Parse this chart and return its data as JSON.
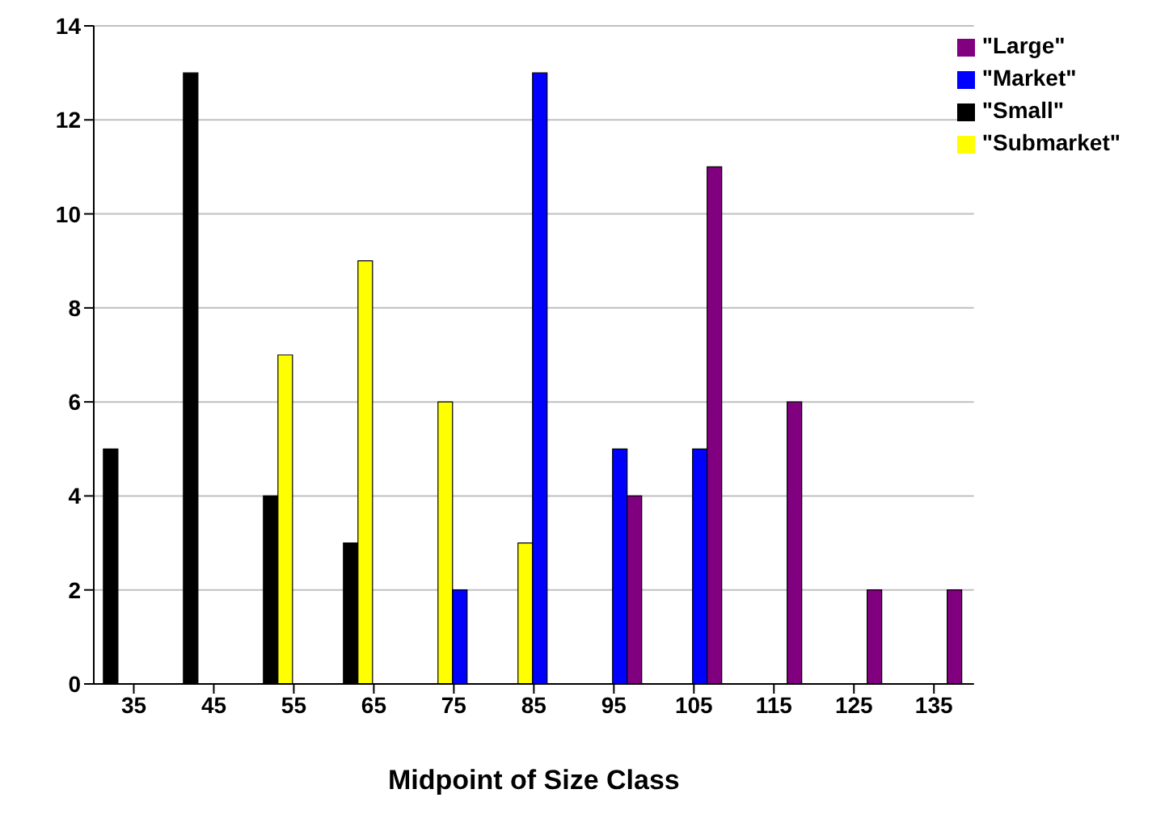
{
  "chart_data": {
    "type": "bar",
    "xlabel": "Midpoint of Size Class",
    "categories": [
      "35",
      "45",
      "55",
      "65",
      "75",
      "85",
      "95",
      "105",
      "115",
      "125",
      "135"
    ],
    "series": [
      {
        "name": "\"Small\"",
        "color": "#000000",
        "values": [
          5,
          13,
          4,
          3,
          null,
          null,
          null,
          null,
          null,
          null,
          null
        ]
      },
      {
        "name": "\"Submarket\"",
        "color": "#ffff00",
        "values": [
          null,
          null,
          7,
          9,
          6,
          3,
          null,
          null,
          null,
          null,
          null
        ]
      },
      {
        "name": "\"Market\"",
        "color": "#0000ff",
        "values": [
          null,
          null,
          null,
          null,
          2,
          13,
          5,
          5,
          null,
          null,
          null
        ]
      },
      {
        "name": "\"Large\"",
        "color": "#800080",
        "values": [
          null,
          null,
          null,
          null,
          null,
          null,
          4,
          11,
          6,
          2,
          2
        ]
      }
    ],
    "ylim": [
      0,
      14
    ],
    "yticks": [
      0,
      2,
      4,
      6,
      8,
      10,
      12,
      14
    ],
    "grid": "y",
    "legend": "top right"
  }
}
